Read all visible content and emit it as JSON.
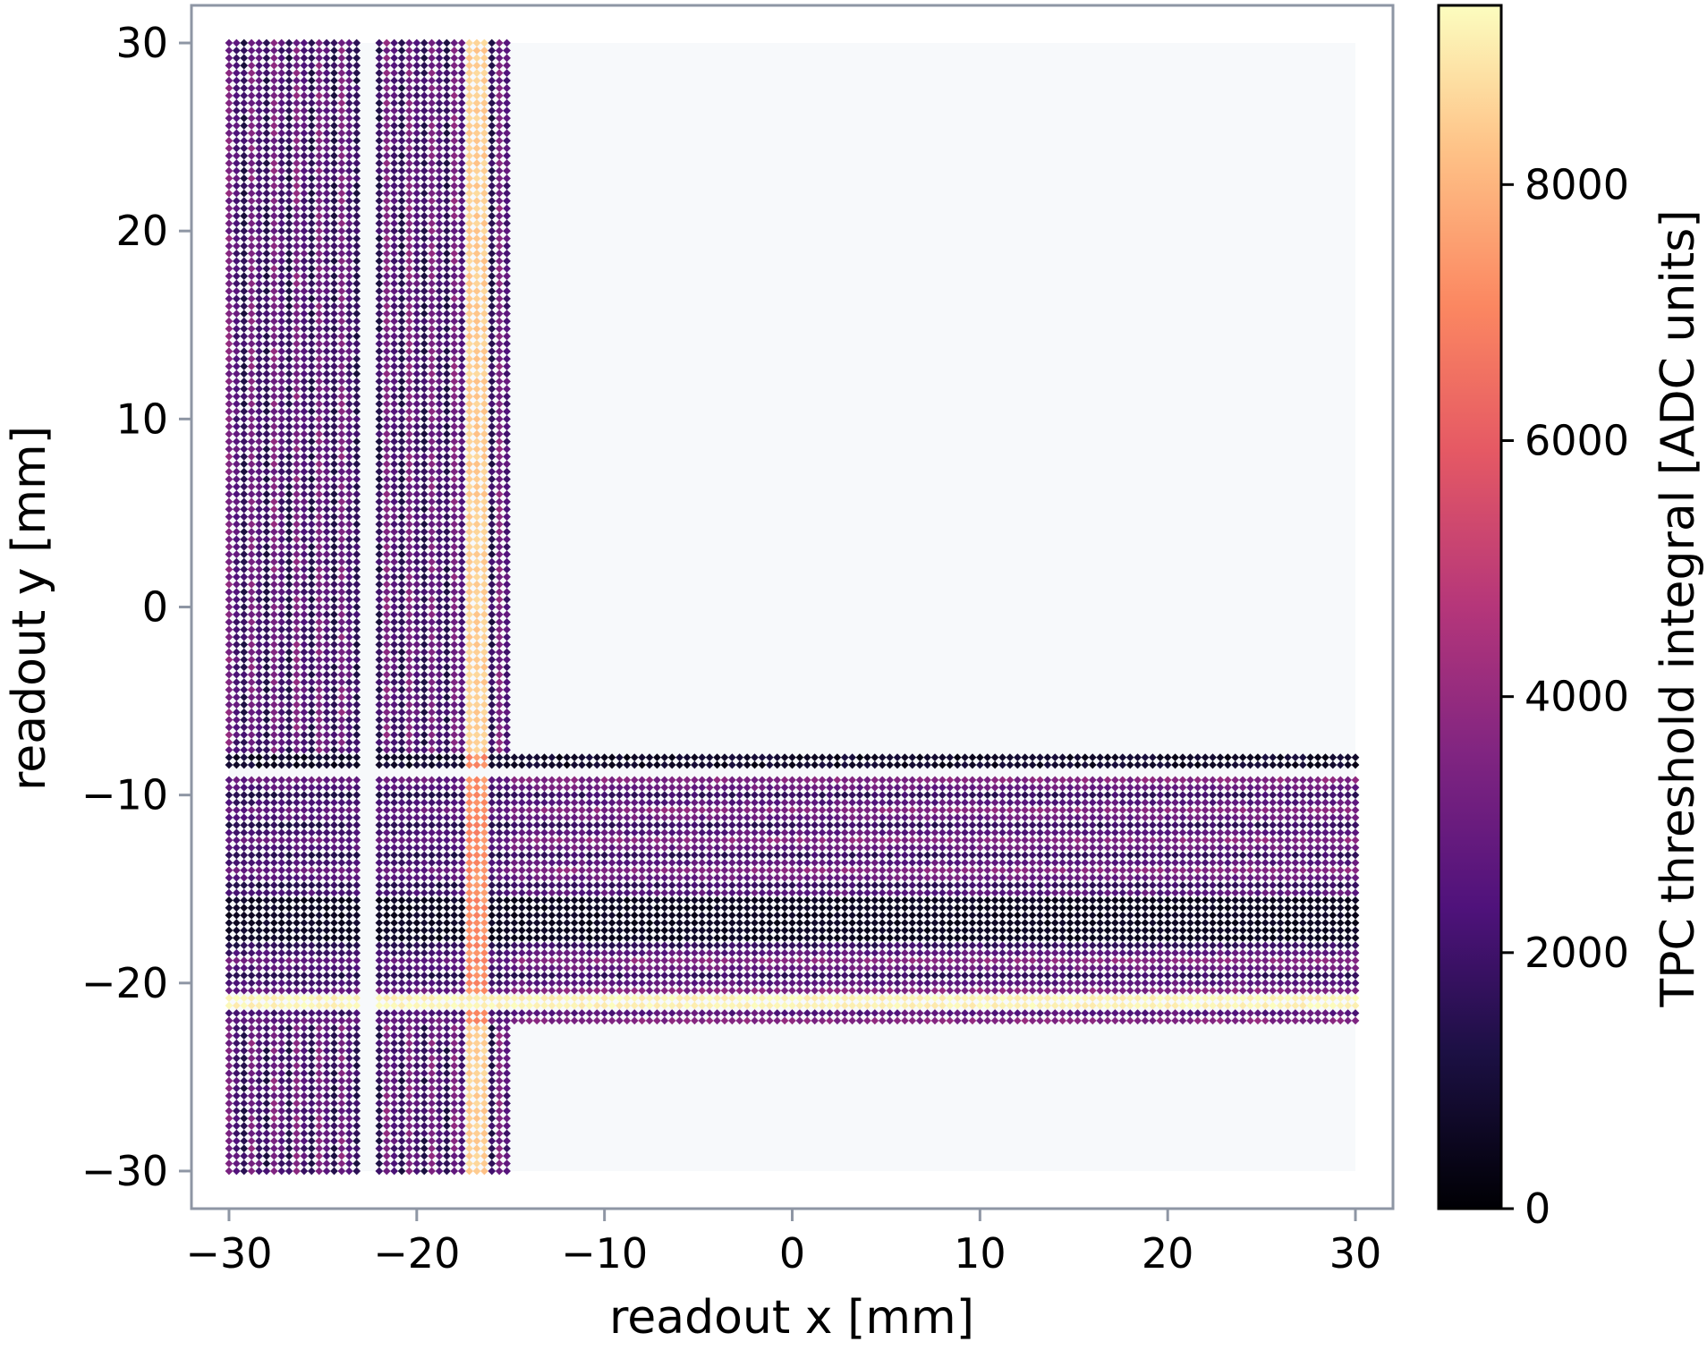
{
  "chart_data": {
    "type": "heatmap",
    "xlabel": "readout x [mm]",
    "ylabel": "readout y [mm]",
    "colorbar_label": "TPC threshold integral [ADC units]",
    "colormap": "magma",
    "xlim": [
      -32,
      32
    ],
    "ylim": [
      -32,
      32
    ],
    "x_ticks": [
      -30,
      -20,
      -10,
      0,
      10,
      20,
      30
    ],
    "y_ticks": [
      -30,
      -20,
      -10,
      0,
      10,
      20,
      30
    ],
    "x_tick_labels": [
      "−30",
      "−20",
      "−10",
      "0",
      "10",
      "20",
      "30"
    ],
    "y_tick_labels": [
      "−30",
      "−20",
      "−10",
      "0",
      "10",
      "20",
      "30"
    ],
    "colorbar_range": [
      0,
      9400
    ],
    "colorbar_ticks": [
      0,
      2000,
      4000,
      6000,
      8000
    ],
    "colorbar_tick_labels": [
      "0",
      "2000",
      "4000",
      "6000",
      "8000"
    ],
    "grid": false,
    "pixel_pitch_mm": 0.4,
    "readout_area": {
      "x": [
        -30,
        30
      ],
      "y": [
        -30,
        30
      ],
      "background": "#f7f9fb"
    },
    "vertical_strip_pixels": {
      "x_range": [
        -30,
        -15
      ],
      "y_range": [
        -30,
        30
      ],
      "gap_x": [
        -23,
        -22.2
      ],
      "bright_columns_x": [
        -17.2,
        -16.4
      ],
      "bright_value": 8500,
      "typical_value_range": [
        1000,
        4000
      ]
    },
    "horizontal_strip_pixels": {
      "x_range": [
        -15,
        30
      ],
      "y_range": [
        -22,
        -8
      ],
      "bright_rows_y": [
        -21.2,
        -20.6
      ],
      "bright_value": 9200,
      "dark_rows_y": [
        -17.6,
        -15.4
      ],
      "typical_value_range": [
        400,
        4000
      ]
    },
    "overlap_region": {
      "x": [
        -30,
        -15
      ],
      "y": [
        -22,
        -8
      ]
    }
  }
}
